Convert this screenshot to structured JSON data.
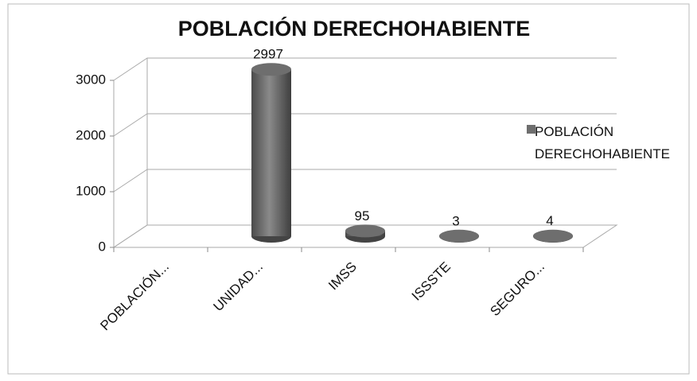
{
  "chart_data": {
    "type": "bar3d",
    "title": "POBLACIÓN DERECHOHABIENTE",
    "categories": [
      "POBLACIÓN...",
      "UNIDAD...",
      "IMSS",
      "ISSSTE",
      "SEGURO..."
    ],
    "series": [
      {
        "name": "POBLACIÓN DERECHOHABIENTE",
        "color": "#6e6e6e",
        "values": [
          null,
          2997,
          95,
          3,
          4
        ]
      }
    ],
    "ylim": [
      0,
      3000
    ],
    "yticks": [
      0,
      1000,
      2000,
      3000
    ],
    "grid": true,
    "legend": "right"
  }
}
